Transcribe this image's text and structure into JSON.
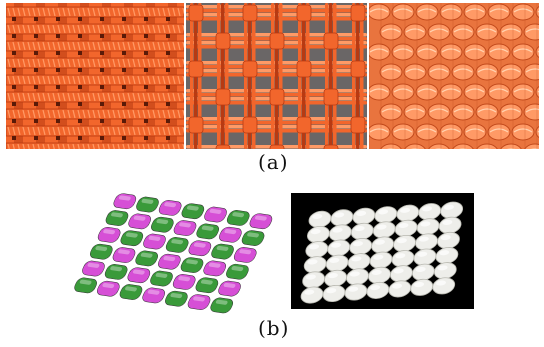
{
  "figure": {
    "caption_a": "(a)",
    "caption_b": "(b)"
  },
  "panels_a": [
    {
      "icon": "orange-plain-weave-photo"
    },
    {
      "icon": "orange-basket-weave-photo"
    },
    {
      "icon": "orange-twill-weave-photo"
    }
  ],
  "panels_b": [
    {
      "icon": "3d-weave-model-render",
      "colors": {
        "warp": "#3a9a3a",
        "weft": "#d64fd6"
      }
    },
    {
      "icon": "white-printed-weave-photo",
      "colors": {
        "background": "#000000",
        "material": "#eeeeea"
      }
    }
  ],
  "colors": {
    "orange": "#f2662c",
    "orange_dark": "#b83a12",
    "orange_light": "#ff9a66"
  }
}
